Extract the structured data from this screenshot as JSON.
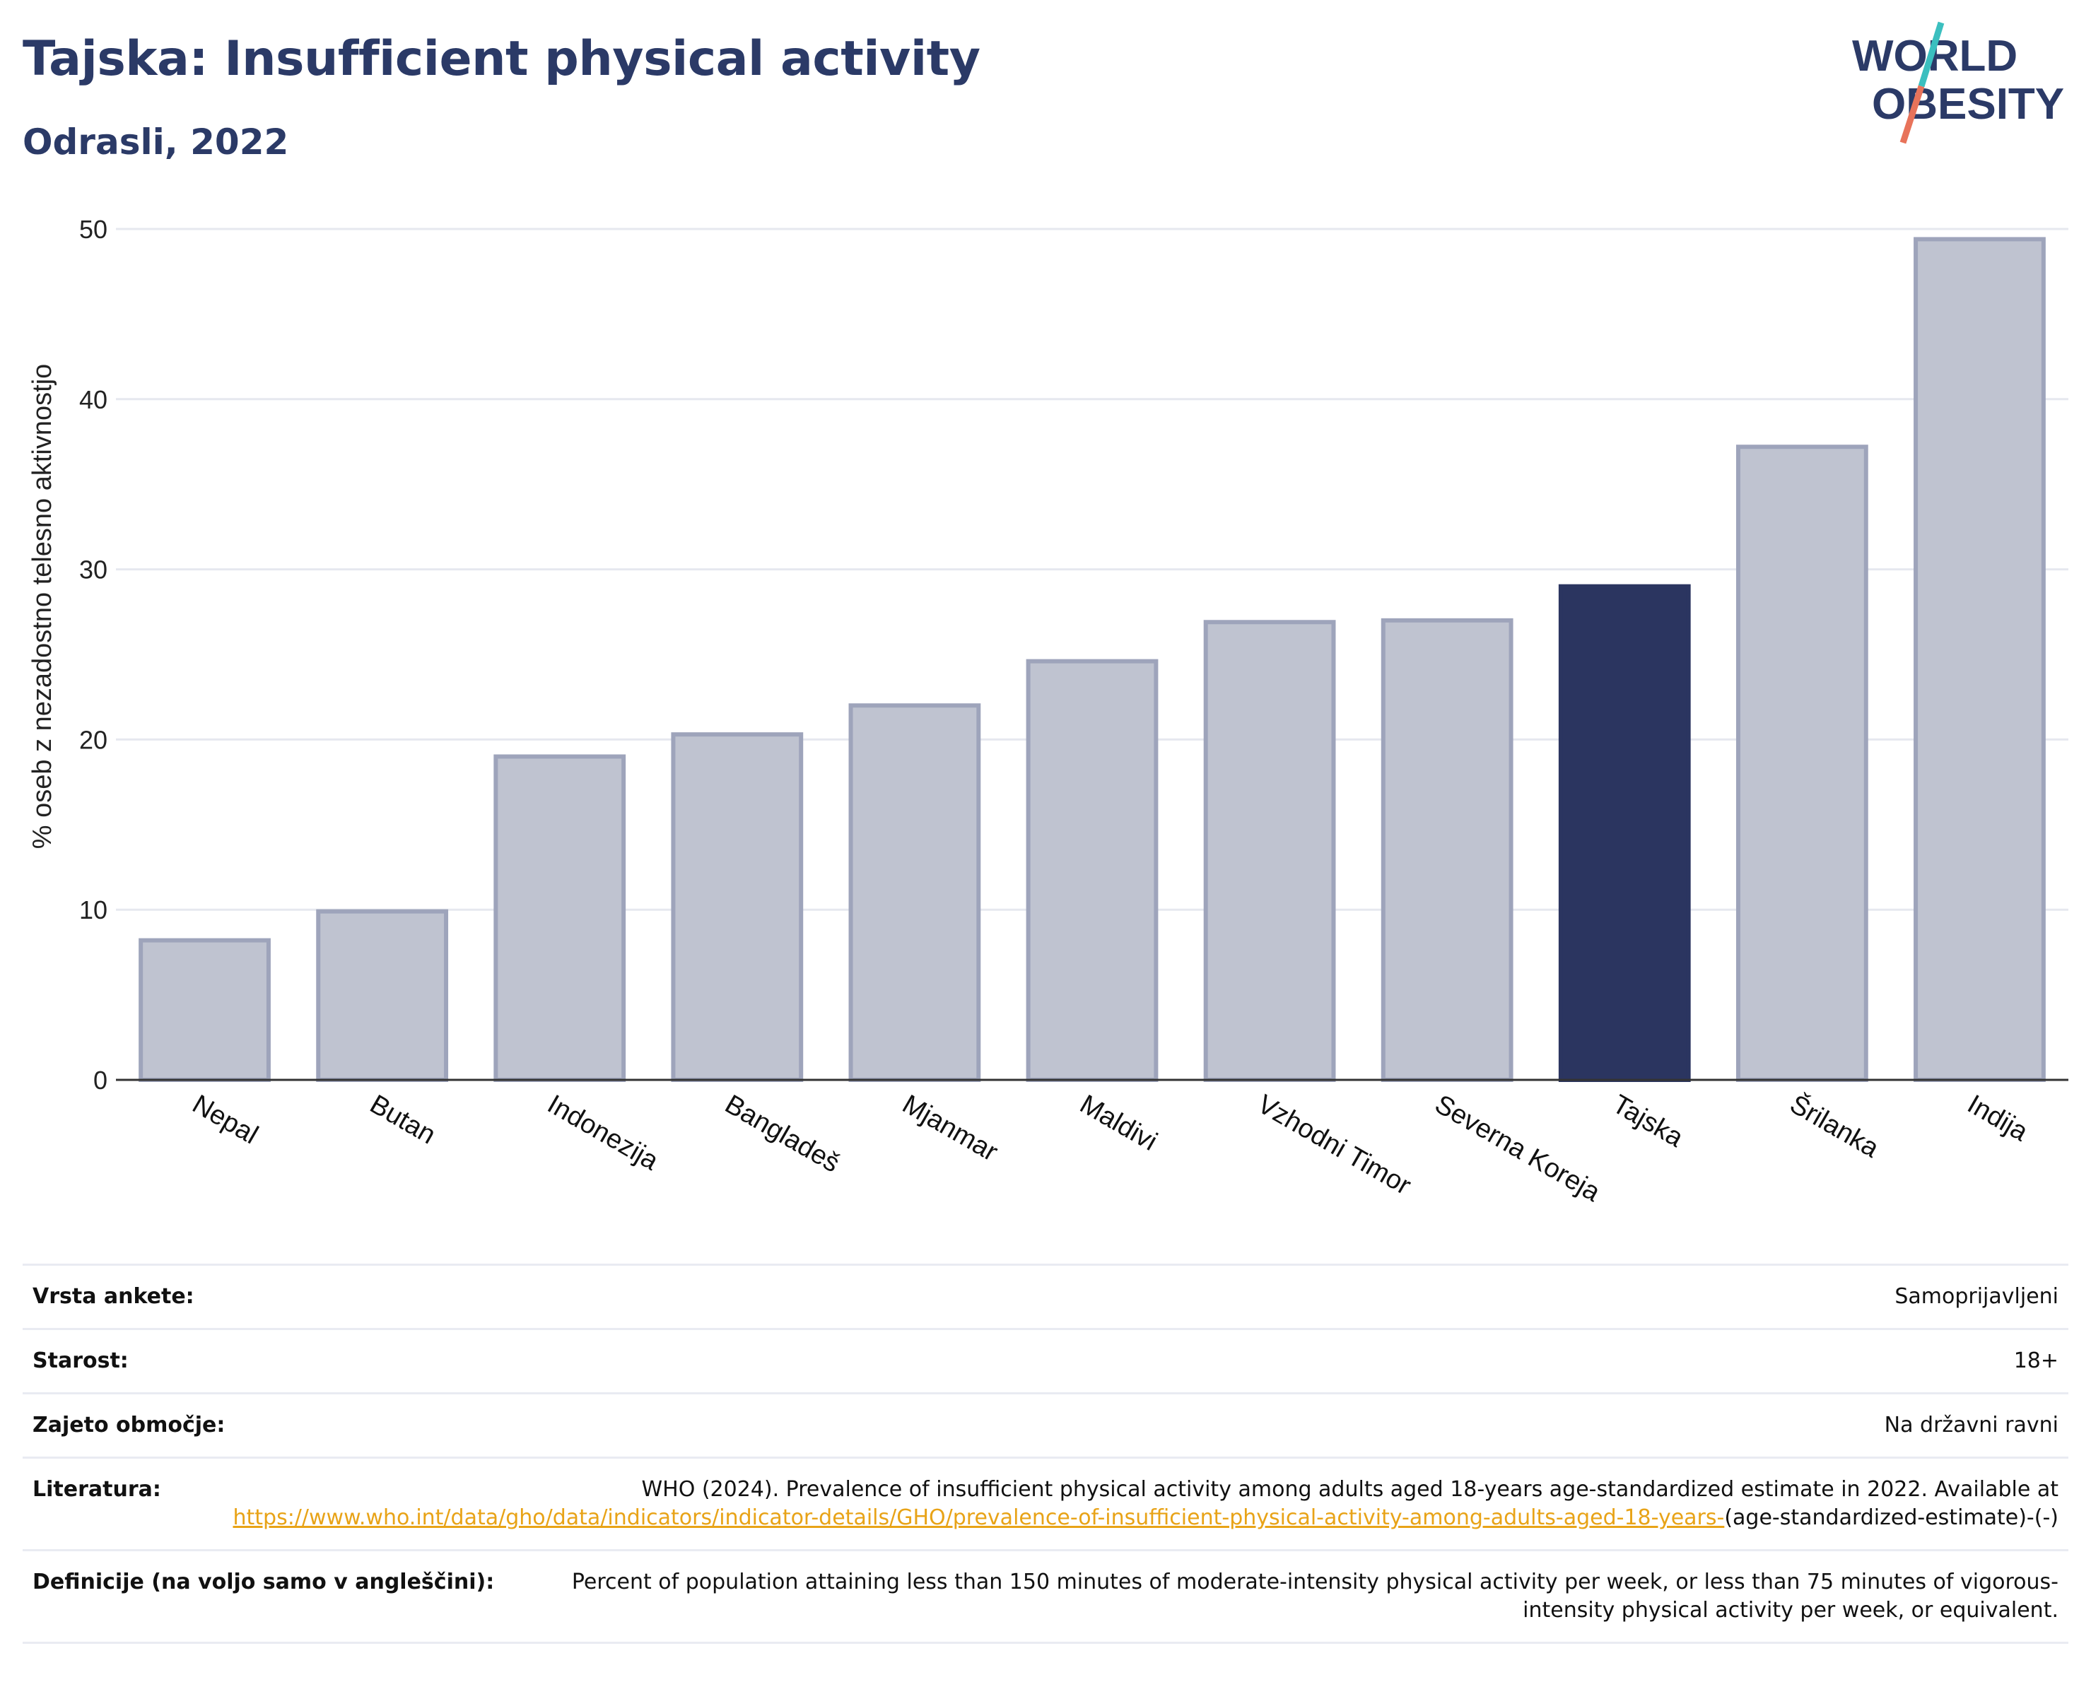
{
  "header": {
    "title": "Tajska: Insufficient physical activity",
    "subtitle": "Odrasli, 2022"
  },
  "logo": {
    "line1": "WORLD",
    "line2": "OBESITY",
    "accent_teal": "#3bbfbf",
    "accent_coral": "#e8735a",
    "text_color": "#2b3a67"
  },
  "colors": {
    "highlight": "#2b3560",
    "bar": "#bfc3d0",
    "bar_border": "#9ea4bb",
    "grid": "#e6e8ef"
  },
  "chart_data": {
    "type": "bar",
    "ylabel": "% oseb z nezadostno telesno aktivnostjo",
    "ylim": [
      0,
      50
    ],
    "yticks": [
      0,
      10,
      20,
      30,
      40,
      50
    ],
    "grid": true,
    "highlight": "Tajska",
    "categories": [
      "Nepal",
      "Butan",
      "Indonezija",
      "Bangladeš",
      "Mjanmar",
      "Maldivi",
      "Vzhodni Timor",
      "Severna Koreja",
      "Tajska",
      "Šrilanka",
      "Indija"
    ],
    "values": [
      8.2,
      9.9,
      19.0,
      20.3,
      22.0,
      24.6,
      26.9,
      27.0,
      29.0,
      37.2,
      49.4
    ]
  },
  "info": {
    "survey_label": "Vrsta ankete:",
    "survey_value": "Samoprijavljeni",
    "age_label": "Starost:",
    "age_value": "18+",
    "coverage_label": "Zajeto območje:",
    "coverage_value": "Na državni ravni",
    "literature_label": "Literatura:",
    "literature_text": "WHO (2024). Prevalence of insufficient physical activity among adults aged 18-years age-standardized estimate in 2022. Available at",
    "literature_link": "https://www.who.int/data/gho/data/indicators/indicator-details/GHO/prevalence-of-insufficient-physical-activity-among-adults-aged-18-years-",
    "literature_suffix": "(age-standardized-estimate)-(-)",
    "definition_label": "Definicije (na voljo samo v angleščini):",
    "definition_text": "Percent of population attaining less than 150 minutes of moderate-intensity physical activity per week, or less than 75 minutes of vigorous-intensity physical activity per week, or equivalent."
  }
}
